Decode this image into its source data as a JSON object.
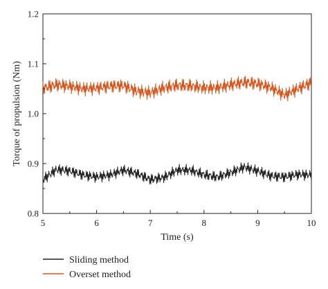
{
  "chart_data": {
    "type": "line",
    "title": "",
    "xlabel": "Time (s)",
    "ylabel": "Torque of propulsion (Nm)",
    "xlim": [
      5,
      10
    ],
    "ylim": [
      0.8,
      1.2
    ],
    "xticks": [
      5,
      6,
      7,
      8,
      9,
      10
    ],
    "yticks": [
      0.8,
      0.9,
      1.0,
      1.1,
      1.2
    ],
    "xtick_labels": [
      "5",
      "6",
      "7",
      "8",
      "9",
      "10"
    ],
    "ytick_labels": [
      "0.8",
      "0.9",
      "1.0",
      "1.1",
      "1.2"
    ],
    "grid": false,
    "legend_position": "bottom-left-outside",
    "series": [
      {
        "name": "Sliding method",
        "color": "#222222",
        "oscillation_amplitude": 0.012,
        "x": [
          5.0,
          5.25,
          5.5,
          5.75,
          6.0,
          6.25,
          6.5,
          6.75,
          7.0,
          7.25,
          7.5,
          7.75,
          8.0,
          8.25,
          8.5,
          8.75,
          9.0,
          9.25,
          9.5,
          9.75,
          10.0
        ],
        "values": [
          0.868,
          0.888,
          0.885,
          0.877,
          0.873,
          0.877,
          0.887,
          0.88,
          0.868,
          0.872,
          0.887,
          0.887,
          0.878,
          0.873,
          0.882,
          0.893,
          0.885,
          0.875,
          0.873,
          0.878,
          0.877
        ]
      },
      {
        "name": "Overset method",
        "color": "#d9541a",
        "oscillation_amplitude": 0.015,
        "x": [
          5.0,
          5.25,
          5.5,
          5.75,
          6.0,
          6.25,
          6.5,
          6.75,
          7.0,
          7.25,
          7.5,
          7.75,
          8.0,
          8.25,
          8.5,
          8.75,
          9.0,
          9.25,
          9.5,
          9.75,
          10.0
        ],
        "values": [
          1.051,
          1.058,
          1.055,
          1.05,
          1.051,
          1.055,
          1.056,
          1.045,
          1.042,
          1.052,
          1.057,
          1.056,
          1.052,
          1.052,
          1.058,
          1.063,
          1.06,
          1.052,
          1.037,
          1.05,
          1.062
        ]
      }
    ]
  }
}
